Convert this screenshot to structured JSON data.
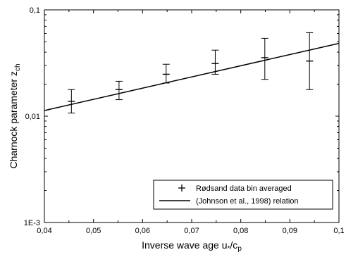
{
  "chart_data": {
    "type": "scatter",
    "title": "",
    "xlabel": "Inverse wave age u*/cp",
    "xlabel_parts": {
      "main": "Inverse wave age u",
      "sub1": "*",
      "mid": "/c",
      "sub2": "p"
    },
    "ylabel": "Charnock parameter zch",
    "ylabel_parts": {
      "main": "Charnock parameter z",
      "sub": "ch"
    },
    "xlim": [
      0.04,
      0.1
    ],
    "ylim": [
      0.001,
      0.1
    ],
    "yscale": "log",
    "grid": false,
    "legend_position": "bottom-right",
    "x_ticks": [
      {
        "value": 0.04,
        "label": "0,04"
      },
      {
        "value": 0.05,
        "label": "0,05"
      },
      {
        "value": 0.06,
        "label": "0,06"
      },
      {
        "value": 0.07,
        "label": "0,07"
      },
      {
        "value": 0.08,
        "label": "0,08"
      },
      {
        "value": 0.09,
        "label": "0,09"
      },
      {
        "value": 0.1,
        "label": "0,1"
      }
    ],
    "y_ticks": [
      {
        "value": 0.001,
        "label": "1E-3"
      },
      {
        "value": 0.01,
        "label": "0,01"
      },
      {
        "value": 0.1,
        "label": "0,1"
      }
    ],
    "series": [
      {
        "name": "Rødsand data bin averaged",
        "kind": "points_with_error_bars",
        "marker": "plus",
        "points": [
          {
            "x": 0.0455,
            "y": 0.0138,
            "y_low": 0.0107,
            "y_high": 0.0178
          },
          {
            "x": 0.0552,
            "y": 0.0178,
            "y_low": 0.0143,
            "y_high": 0.0213
          },
          {
            "x": 0.0648,
            "y": 0.0248,
            "y_low": 0.0205,
            "y_high": 0.0308
          },
          {
            "x": 0.0748,
            "y": 0.0313,
            "y_low": 0.0248,
            "y_high": 0.0418
          },
          {
            "x": 0.0849,
            "y": 0.0355,
            "y_low": 0.0222,
            "y_high": 0.054
          },
          {
            "x": 0.094,
            "y": 0.033,
            "y_low": 0.0178,
            "y_high": 0.061
          }
        ]
      },
      {
        "name": "(Johnson et al., 1998) relation",
        "kind": "line",
        "x": [
          0.04,
          0.1
        ],
        "y": [
          0.0113,
          0.0484
        ]
      }
    ]
  }
}
